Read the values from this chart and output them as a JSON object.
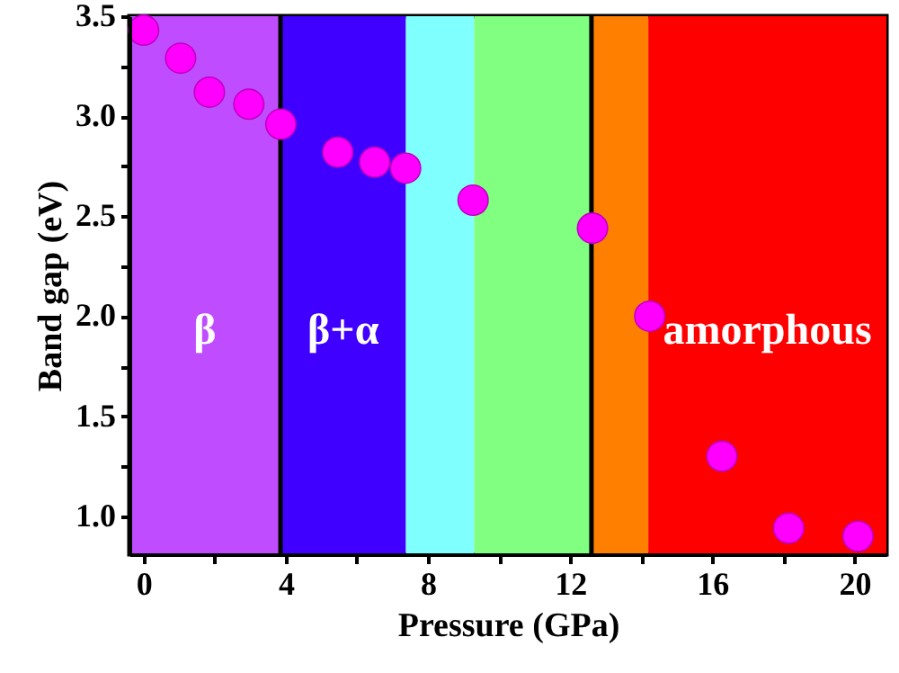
{
  "chart_data": {
    "type": "scatter",
    "xlabel": "Pressure (GPa)",
    "ylabel": "Band gap (eV)",
    "x": [
      0,
      1.04,
      1.85,
      2.96,
      3.86,
      5.46,
      6.5,
      7.37,
      9.27,
      12.63,
      14.24,
      16.27,
      18.15,
      20.1
    ],
    "series": [
      {
        "color": "#ff00ff",
        "values": [
          3.43,
          3.29,
          3.12,
          3.06,
          2.96,
          2.82,
          2.77,
          2.74,
          2.58,
          2.44,
          2.0,
          1.3,
          0.94,
          0.9
        ]
      }
    ],
    "xlim": [
      -0.4,
      20.9
    ],
    "ylim": [
      0.81,
      3.5
    ],
    "xticks": [
      0,
      {
        "value": 2,
        "label": null
      },
      4,
      {
        "value": 6,
        "label": null
      },
      8,
      {
        "value": 10,
        "label": null
      },
      12,
      {
        "value": 14,
        "label": null
      },
      16,
      {
        "value": 18,
        "label": null
      },
      20
    ],
    "yticks": [
      {
        "value": 1,
        "label": "1.0"
      },
      {
        "value": 1.25,
        "label": null
      },
      {
        "value": 1.5,
        "label": "1.5"
      },
      {
        "value": 1.75,
        "label": null
      },
      {
        "value": 2,
        "label": "2.0"
      },
      {
        "value": 2.25,
        "label": null
      },
      {
        "value": 2.5,
        "label": "2.5"
      },
      {
        "value": 2.75,
        "label": null
      },
      {
        "value": 3,
        "label": "3.0"
      },
      {
        "value": 3.25,
        "label": null
      },
      {
        "value": 3.5,
        "label": "3.5"
      }
    ],
    "bands": [
      {
        "axis": "x",
        "from": -0.4,
        "to": 3.85,
        "color": "#bf4dff",
        "label": "β"
      },
      {
        "axis": "x",
        "from": 3.85,
        "to": 7.38,
        "color": "#4000ff",
        "label": "β+α"
      },
      {
        "axis": "x",
        "from": 7.38,
        "to": 9.3,
        "color": "#80ffff"
      },
      {
        "axis": "x",
        "from": 9.3,
        "to": 12.6,
        "color": "#80ff80"
      },
      {
        "axis": "x",
        "from": 12.6,
        "to": 14.2,
        "color": "#ff8000"
      },
      {
        "axis": "x",
        "from": 14.2,
        "to": 20.9,
        "color": "#ff0000",
        "label": "amorphous"
      }
    ],
    "ref_lines": [
      {
        "axis": "x",
        "value": 3.85,
        "color": "#000000"
      },
      {
        "axis": "x",
        "value": 12.6,
        "color": "#000000"
      }
    ],
    "marker": "circle"
  }
}
